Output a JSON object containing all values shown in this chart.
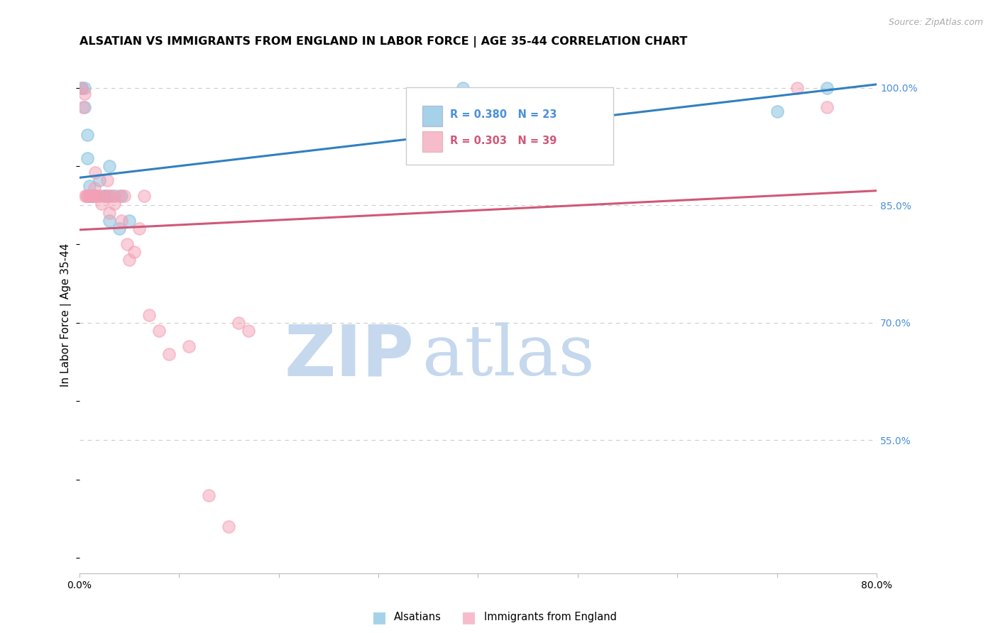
{
  "title": "ALSATIAN VS IMMIGRANTS FROM ENGLAND IN LABOR FORCE | AGE 35-44 CORRELATION CHART",
  "source": "Source: ZipAtlas.com",
  "ylabel": "In Labor Force | Age 35-44",
  "R_blue": 0.38,
  "N_blue": 23,
  "R_pink": 0.303,
  "N_pink": 39,
  "blue_color": "#7fbfdf",
  "pink_color": "#f4a0b5",
  "blue_line_color": "#3080c0",
  "pink_line_color": "#d05878",
  "axis_color": "#4a90d9",
  "watermark_color": "#d0e4f5",
  "xlim": [
    0.0,
    0.8
  ],
  "ylim": [
    0.38,
    1.04
  ],
  "yticks_right": [
    1.0,
    0.85,
    0.7,
    0.55
  ],
  "ytick_labels_right": [
    "100.0%",
    "85.0%",
    "70.0%",
    "55.0%"
  ],
  "blue_x": [
    0.002,
    0.005,
    0.005,
    0.008,
    0.008,
    0.01,
    0.01,
    0.012,
    0.012,
    0.014,
    0.016,
    0.02,
    0.025,
    0.028,
    0.03,
    0.03,
    0.035,
    0.04,
    0.042,
    0.05,
    0.385,
    0.7,
    0.75
  ],
  "blue_y": [
    1.0,
    1.0,
    0.975,
    0.94,
    0.91,
    0.875,
    0.862,
    0.862,
    0.862,
    0.862,
    0.862,
    0.882,
    0.862,
    0.862,
    0.9,
    0.83,
    0.862,
    0.82,
    0.862,
    0.83,
    1.0,
    0.97,
    1.0
  ],
  "pink_x": [
    0.002,
    0.004,
    0.005,
    0.006,
    0.007,
    0.008,
    0.01,
    0.01,
    0.012,
    0.014,
    0.015,
    0.016,
    0.018,
    0.02,
    0.022,
    0.025,
    0.028,
    0.03,
    0.03,
    0.032,
    0.035,
    0.04,
    0.042,
    0.045,
    0.048,
    0.05,
    0.055,
    0.06,
    0.065,
    0.07,
    0.08,
    0.09,
    0.11,
    0.13,
    0.15,
    0.16,
    0.17,
    0.72,
    0.75
  ],
  "pink_y": [
    1.0,
    0.975,
    0.992,
    0.862,
    0.862,
    0.862,
    0.862,
    0.862,
    0.862,
    0.862,
    0.872,
    0.892,
    0.862,
    0.862,
    0.852,
    0.862,
    0.882,
    0.862,
    0.84,
    0.862,
    0.852,
    0.862,
    0.83,
    0.862,
    0.8,
    0.78,
    0.79,
    0.82,
    0.862,
    0.71,
    0.69,
    0.66,
    0.67,
    0.48,
    0.44,
    0.7,
    0.69,
    1.0,
    0.975
  ],
  "background_color": "#ffffff",
  "grid_color": "#cccccc",
  "title_fontsize": 11.5,
  "axis_label_fontsize": 11,
  "tick_fontsize": 10,
  "watermark_zip_fontsize": 72,
  "watermark_atlas_fontsize": 72
}
